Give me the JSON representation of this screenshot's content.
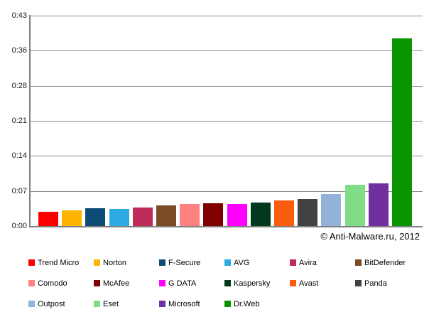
{
  "watermark": "© Anti-Malware.ru, 2012",
  "chart_data": {
    "type": "bar",
    "title": "",
    "xlabel": "",
    "ylabel": "",
    "y_axis_format": "m:ss",
    "ylim_seconds": [
      0,
      43.2
    ],
    "grid": true,
    "legend_position": "bottom",
    "y_ticks": [
      {
        "label": "0:43",
        "seconds": 43.2
      },
      {
        "label": "0:36",
        "seconds": 36.0
      },
      {
        "label": "0:28",
        "seconds": 28.8
      },
      {
        "label": "0:21",
        "seconds": 21.6
      },
      {
        "label": "0:14",
        "seconds": 14.4
      },
      {
        "label": "0:07",
        "seconds": 7.2
      },
      {
        "label": "0:00",
        "seconds": 0
      }
    ],
    "series": [
      {
        "name": "Trend Micro",
        "seconds": 2.9,
        "color": "#FC0000"
      },
      {
        "name": "Norton",
        "seconds": 3.2,
        "color": "#FFB400"
      },
      {
        "name": "F-Secure",
        "seconds": 3.7,
        "color": "#0E4C75"
      },
      {
        "name": "AVG",
        "seconds": 3.5,
        "color": "#2BABE2"
      },
      {
        "name": "Avira",
        "seconds": 3.8,
        "color": "#BE2A5A"
      },
      {
        "name": "BitDefender",
        "seconds": 4.2,
        "color": "#7B4A26"
      },
      {
        "name": "Comodo",
        "seconds": 4.5,
        "color": "#FF8080"
      },
      {
        "name": "McAfee",
        "seconds": 4.6,
        "color": "#800000"
      },
      {
        "name": "G DATA",
        "seconds": 4.5,
        "color": "#FF00FF"
      },
      {
        "name": "Kaspersky",
        "seconds": 4.8,
        "color": "#02391C"
      },
      {
        "name": "Avast",
        "seconds": 5.2,
        "color": "#FA5B0D"
      },
      {
        "name": "Panda",
        "seconds": 5.6,
        "color": "#424242"
      },
      {
        "name": "Outpost",
        "seconds": 6.6,
        "color": "#92B2D8"
      },
      {
        "name": "Eset",
        "seconds": 8.4,
        "color": "#80DC86"
      },
      {
        "name": "Microsoft",
        "seconds": 8.7,
        "color": "#722FA0"
      },
      {
        "name": "Dr.Web",
        "seconds": 38.5,
        "color": "#0A9400"
      }
    ]
  }
}
